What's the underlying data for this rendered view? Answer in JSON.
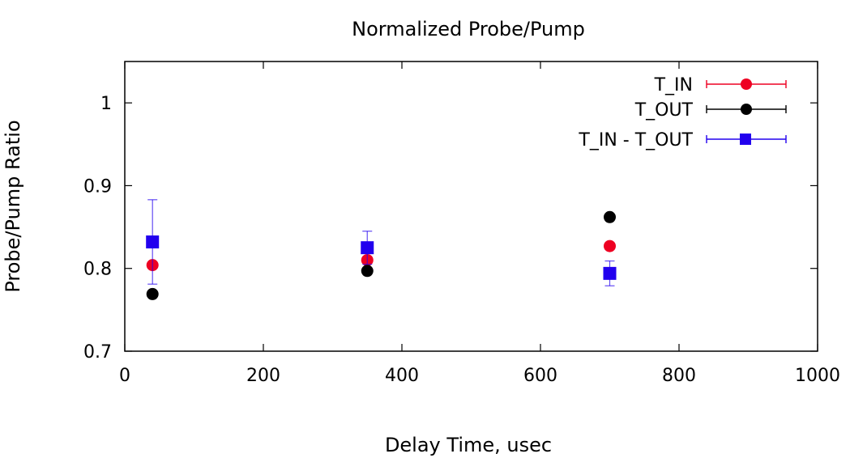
{
  "chart_data": {
    "type": "scatter",
    "title": "Normalized Probe/Pump",
    "xlabel": "Delay Time, usec",
    "ylabel": "Probe/Pump Ratio",
    "xlim": [
      0,
      1000
    ],
    "ylim": [
      0.7,
      1.05
    ],
    "xticks": [
      "0",
      "200",
      "400",
      "600",
      "800",
      "1000"
    ],
    "yticks": [
      "0.7",
      "0.8",
      "0.9",
      "1"
    ],
    "grid": false,
    "legend_position": "top-right",
    "series": [
      {
        "name": "T_IN",
        "color": "#ee0022",
        "marker": "circle",
        "points": [
          {
            "x": 40,
            "y": 0.804
          },
          {
            "x": 350,
            "y": 0.81
          },
          {
            "x": 700,
            "y": 0.827
          }
        ]
      },
      {
        "name": "T_OUT",
        "color": "#000000",
        "marker": "circle",
        "points": [
          {
            "x": 40,
            "y": 0.769
          },
          {
            "x": 350,
            "y": 0.797
          },
          {
            "x": 700,
            "y": 0.862
          }
        ]
      },
      {
        "name": "T_IN - T_OUT",
        "color": "#2200ee",
        "marker": "square",
        "points": [
          {
            "x": 40,
            "y": 0.832,
            "err": 0.051
          },
          {
            "x": 350,
            "y": 0.825,
            "err": 0.02
          },
          {
            "x": 700,
            "y": 0.794,
            "err": 0.015
          }
        ]
      }
    ]
  }
}
